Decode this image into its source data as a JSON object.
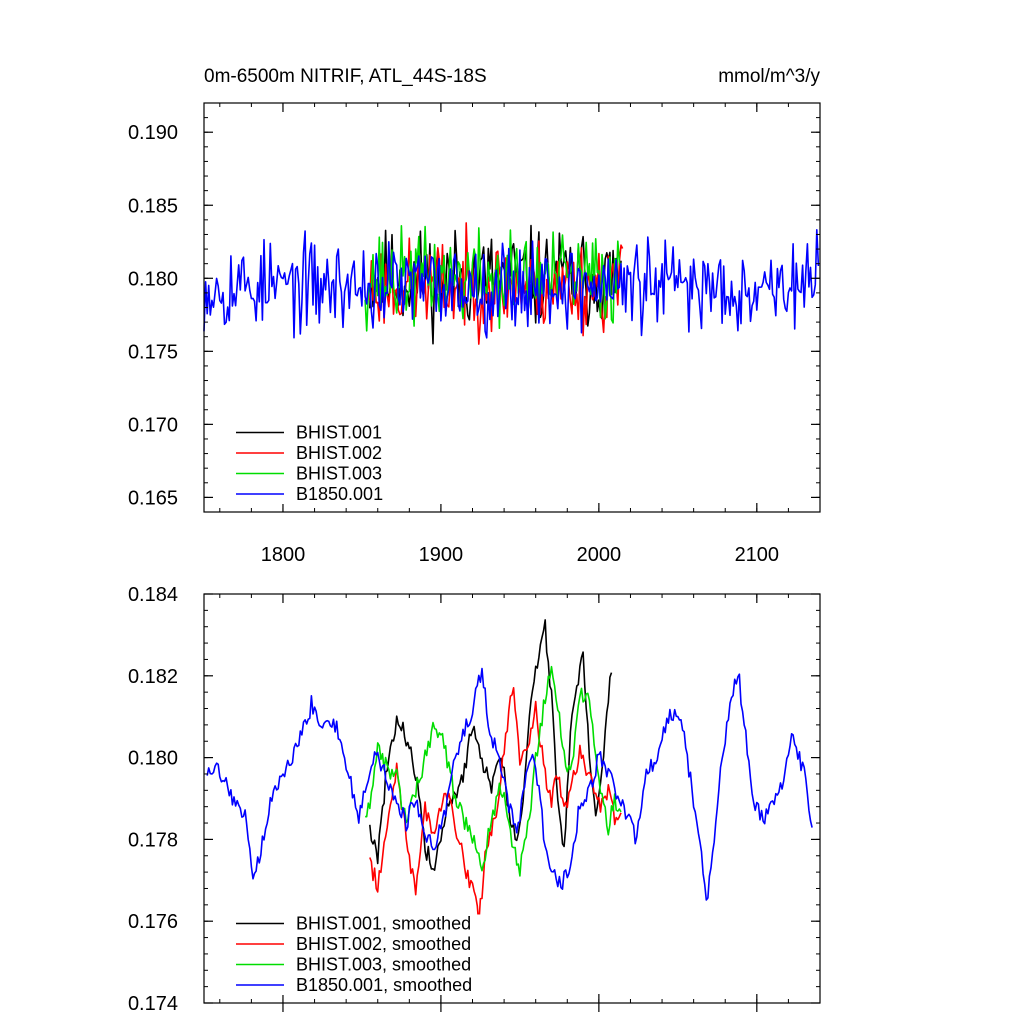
{
  "chart_data": [
    {
      "type": "line",
      "title_left": "0m-6500m NITRIF, ATL_44S-18S",
      "title_right": "mmol/m^3/y",
      "xlabel": "",
      "ylabel": "",
      "xlim": [
        1750,
        2140
      ],
      "ylim": [
        0.164,
        0.192
      ],
      "xticks": [
        1800,
        1900,
        2000,
        2100
      ],
      "xtick_labels": [
        "1800",
        "1900",
        "2000",
        "2100"
      ],
      "yticks": [
        0.165,
        0.17,
        0.175,
        0.18,
        0.185,
        0.19
      ],
      "ytick_labels": [
        "0.165",
        "0.170",
        "0.175",
        "0.180",
        "0.185",
        "0.190"
      ],
      "legend_position": "bottom-left",
      "series": [
        {
          "name": "BHIST.001",
          "color": "#000000",
          "x_start": 1855,
          "x_end": 2014,
          "mean": 0.18,
          "amplitude": 0.0035,
          "seed": 11
        },
        {
          "name": "BHIST.002",
          "color": "#ff0000",
          "x_start": 1855,
          "x_end": 2015,
          "mean": 0.1795,
          "amplitude": 0.0033,
          "seed": 23
        },
        {
          "name": "BHIST.003",
          "color": "#00dd00",
          "x_start": 1852,
          "x_end": 2014,
          "mean": 0.18,
          "amplitude": 0.0034,
          "seed": 37
        },
        {
          "name": "B1850.001",
          "color": "#0000ff",
          "x_start": 1750,
          "x_end": 2139,
          "mean": 0.1795,
          "amplitude": 0.0032,
          "seed": 53
        }
      ]
    },
    {
      "type": "line",
      "title_left": "",
      "title_right": "",
      "xlabel": "",
      "ylabel": "",
      "xlim": [
        1750,
        2140
      ],
      "ylim": [
        0.174,
        0.184
      ],
      "xticks": [
        1800,
        1900,
        2000,
        2100
      ],
      "xtick_labels": [],
      "yticks": [
        0.174,
        0.176,
        0.178,
        0.18,
        0.182,
        0.184
      ],
      "ytick_labels": [
        "0.174",
        "0.176",
        "0.178",
        "0.180",
        "0.182",
        "0.184"
      ],
      "legend_position": "bottom-left",
      "series": [
        {
          "name": "BHIST.001, smoothed",
          "color": "#000000",
          "x_start": 1855,
          "x_end": 2008,
          "keypoints": [
            [
              1855,
              0.1783
            ],
            [
              1860,
              0.1776
            ],
            [
              1866,
              0.1798
            ],
            [
              1872,
              0.181
            ],
            [
              1878,
              0.1805
            ],
            [
              1885,
              0.1795
            ],
            [
              1890,
              0.1778
            ],
            [
              1896,
              0.1772
            ],
            [
              1902,
              0.1785
            ],
            [
              1908,
              0.179
            ],
            [
              1914,
              0.1795
            ],
            [
              1920,
              0.1808
            ],
            [
              1926,
              0.18
            ],
            [
              1932,
              0.1792
            ],
            [
              1938,
              0.1802
            ],
            [
              1944,
              0.1785
            ],
            [
              1948,
              0.1778
            ],
            [
              1952,
              0.179
            ],
            [
              1956,
              0.181
            ],
            [
              1960,
              0.1822
            ],
            [
              1966,
              0.1832
            ],
            [
              1970,
              0.1815
            ],
            [
              1974,
              0.179
            ],
            [
              1978,
              0.1778
            ],
            [
              1982,
              0.1805
            ],
            [
              1986,
              0.1818
            ],
            [
              1990,
              0.1825
            ],
            [
              1994,
              0.18
            ],
            [
              1998,
              0.1784
            ],
            [
              2002,
              0.1795
            ],
            [
              2006,
              0.1815
            ],
            [
              2008,
              0.1821
            ]
          ]
        },
        {
          "name": "BHIST.002, smoothed",
          "color": "#ff0000",
          "x_start": 1855,
          "x_end": 2014,
          "keypoints": [
            [
              1855,
              0.1775
            ],
            [
              1860,
              0.1768
            ],
            [
              1866,
              0.1785
            ],
            [
              1872,
              0.1798
            ],
            [
              1878,
              0.178
            ],
            [
              1884,
              0.1767
            ],
            [
              1890,
              0.1788
            ],
            [
              1896,
              0.178
            ],
            [
              1902,
              0.1792
            ],
            [
              1908,
              0.1786
            ],
            [
              1914,
              0.1775
            ],
            [
              1920,
              0.1768
            ],
            [
              1924,
              0.176
            ],
            [
              1928,
              0.1775
            ],
            [
              1934,
              0.1785
            ],
            [
              1938,
              0.1795
            ],
            [
              1942,
              0.1808
            ],
            [
              1946,
              0.1818
            ],
            [
              1950,
              0.18
            ],
            [
              1956,
              0.1805
            ],
            [
              1960,
              0.1812
            ],
            [
              1966,
              0.1796
            ],
            [
              1970,
              0.179
            ],
            [
              1974,
              0.1795
            ],
            [
              1978,
              0.1787
            ],
            [
              1982,
              0.1792
            ],
            [
              1988,
              0.1802
            ],
            [
              1994,
              0.1795
            ],
            [
              2000,
              0.1788
            ],
            [
              2006,
              0.1792
            ],
            [
              2010,
              0.1785
            ],
            [
              2014,
              0.1788
            ]
          ]
        },
        {
          "name": "BHIST.003, smoothed",
          "color": "#00dd00",
          "x_start": 1852,
          "x_end": 2014,
          "keypoints": [
            [
              1852,
              0.1785
            ],
            [
              1856,
              0.179
            ],
            [
              1860,
              0.1802
            ],
            [
              1866,
              0.1797
            ],
            [
              1872,
              0.1795
            ],
            [
              1878,
              0.1785
            ],
            [
              1884,
              0.1792
            ],
            [
              1890,
              0.18
            ],
            [
              1896,
              0.1809
            ],
            [
              1902,
              0.1803
            ],
            [
              1908,
              0.1792
            ],
            [
              1914,
              0.1785
            ],
            [
              1920,
              0.178
            ],
            [
              1926,
              0.1772
            ],
            [
              1932,
              0.1785
            ],
            [
              1938,
              0.1793
            ],
            [
              1944,
              0.1782
            ],
            [
              1950,
              0.1772
            ],
            [
              1956,
              0.1785
            ],
            [
              1960,
              0.18
            ],
            [
              1966,
              0.1815
            ],
            [
              1970,
              0.1822
            ],
            [
              1974,
              0.1812
            ],
            [
              1978,
              0.18
            ],
            [
              1982,
              0.1795
            ],
            [
              1988,
              0.1815
            ],
            [
              1992,
              0.1816
            ],
            [
              1996,
              0.1808
            ],
            [
              2000,
              0.1795
            ],
            [
              2006,
              0.1783
            ],
            [
              2010,
              0.179
            ],
            [
              2014,
              0.1785
            ]
          ]
        },
        {
          "name": "B1850.001, smoothed",
          "color": "#0000ff",
          "x_start": 1752,
          "x_end": 2135,
          "keypoints": [
            [
              1752,
              0.1795
            ],
            [
              1758,
              0.1797
            ],
            [
              1764,
              0.1793
            ],
            [
              1770,
              0.1788
            ],
            [
              1776,
              0.1785
            ],
            [
              1782,
              0.177
            ],
            [
              1788,
              0.1782
            ],
            [
              1794,
              0.1792
            ],
            [
              1800,
              0.1795
            ],
            [
              1806,
              0.18
            ],
            [
              1812,
              0.1806
            ],
            [
              1818,
              0.1813
            ],
            [
              1824,
              0.1808
            ],
            [
              1830,
              0.181
            ],
            [
              1836,
              0.1805
            ],
            [
              1842,
              0.1795
            ],
            [
              1848,
              0.1786
            ],
            [
              1854,
              0.1795
            ],
            [
              1860,
              0.1802
            ],
            [
              1866,
              0.1793
            ],
            [
              1872,
              0.179
            ],
            [
              1878,
              0.1784
            ],
            [
              1884,
              0.179
            ],
            [
              1890,
              0.178
            ],
            [
              1896,
              0.1778
            ],
            [
              1902,
              0.1785
            ],
            [
              1908,
              0.18
            ],
            [
              1914,
              0.1805
            ],
            [
              1920,
              0.1812
            ],
            [
              1926,
              0.1822
            ],
            [
              1930,
              0.1808
            ],
            [
              1936,
              0.18
            ],
            [
              1942,
              0.179
            ],
            [
              1948,
              0.1782
            ],
            [
              1954,
              0.1795
            ],
            [
              1958,
              0.18
            ],
            [
              1962,
              0.1792
            ],
            [
              1966,
              0.1778
            ],
            [
              1970,
              0.1772
            ],
            [
              1976,
              0.1768
            ],
            [
              1982,
              0.1775
            ],
            [
              1988,
              0.1788
            ],
            [
              1994,
              0.1792
            ],
            [
              2000,
              0.18
            ],
            [
              2006,
              0.1796
            ],
            [
              2012,
              0.179
            ],
            [
              2018,
              0.1785
            ],
            [
              2024,
              0.178
            ],
            [
              2030,
              0.1795
            ],
            [
              2036,
              0.18
            ],
            [
              2042,
              0.1808
            ],
            [
              2048,
              0.1812
            ],
            [
              2054,
              0.1805
            ],
            [
              2060,
              0.179
            ],
            [
              2064,
              0.1778
            ],
            [
              2068,
              0.1765
            ],
            [
              2072,
              0.1775
            ],
            [
              2078,
              0.18
            ],
            [
              2084,
              0.1815
            ],
            [
              2088,
              0.1822
            ],
            [
              2092,
              0.1808
            ],
            [
              2098,
              0.179
            ],
            [
              2104,
              0.1785
            ],
            [
              2110,
              0.179
            ],
            [
              2116,
              0.1792
            ],
            [
              2122,
              0.1805
            ],
            [
              2126,
              0.18
            ],
            [
              2130,
              0.1798
            ],
            [
              2135,
              0.1783
            ]
          ]
        }
      ]
    }
  ]
}
